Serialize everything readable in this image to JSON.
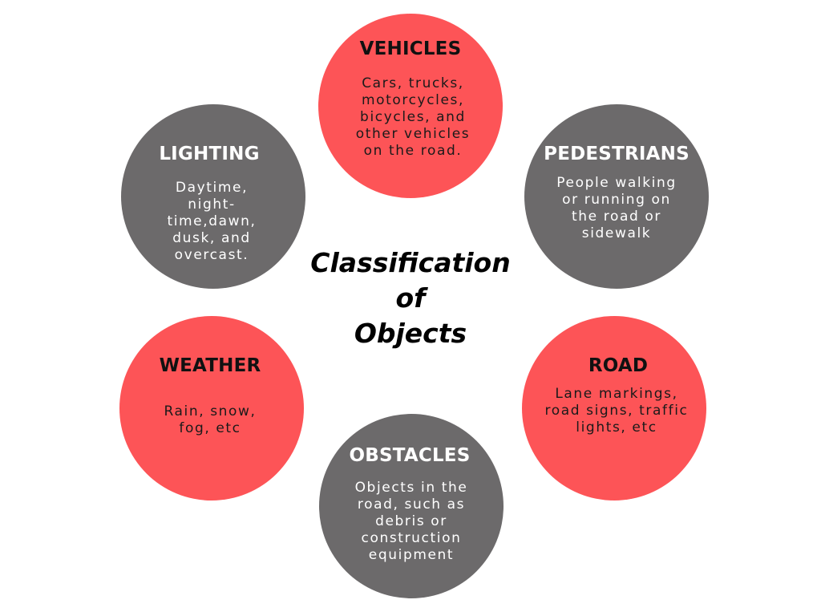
{
  "center_title": [
    "Classification",
    "of",
    "Objects"
  ],
  "categories": {
    "vehicles": {
      "title": "VEHICLES",
      "desc": "Cars, trucks, motorcycles, bicycles, and other vehicles on the road."
    },
    "pedestrians": {
      "title": "PEDESTRIANS",
      "desc": "People walking or running on the road or sidewalk"
    },
    "road": {
      "title": "ROAD",
      "desc": "Lane markings, road signs, traffic lights, etc"
    },
    "obstacles": {
      "title": "OBSTACLES",
      "desc": "Objects in the road, such as debris or construction equipment"
    },
    "weather": {
      "title": "WEATHER",
      "desc": "Rain, snow, fog, etc"
    },
    "lighting": {
      "title": "LIGHTING",
      "desc": "Daytime, night-time,dawn, dusk, and overcast."
    }
  },
  "colors": {
    "accent_red": "#fd5457",
    "neutral_gray": "#6c6a6b"
  }
}
